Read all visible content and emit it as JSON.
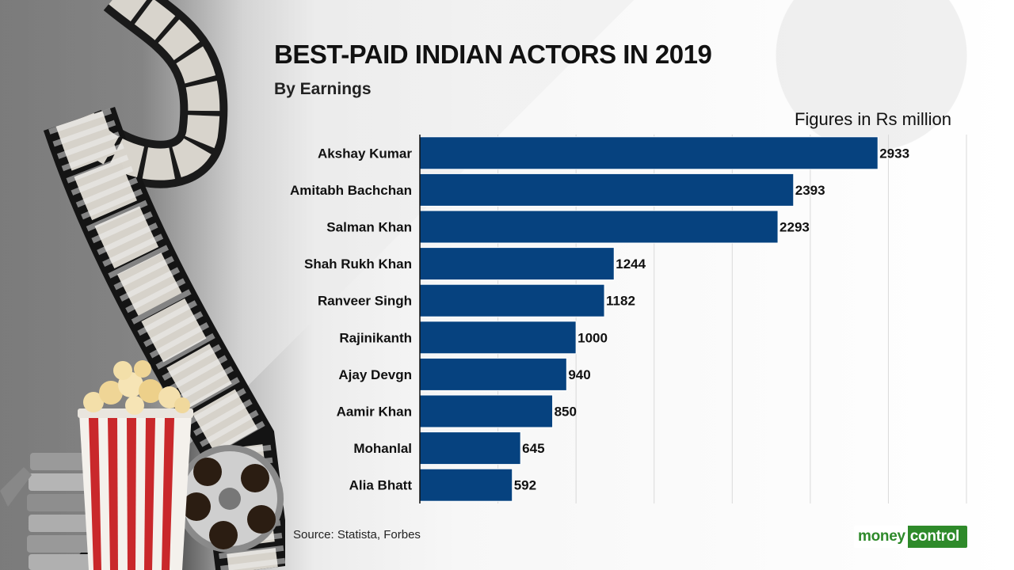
{
  "title": "BEST-PAID INDIAN ACTORS IN 2019",
  "subtitle": "By Earnings",
  "unit_note": "Figures in Rs million",
  "source": "Source: Statista, Forbes",
  "logo": {
    "part1": "money",
    "part2": "control"
  },
  "colors": {
    "bar": "#06427f",
    "logo_green": "#2e8a2a"
  },
  "icons": [
    "film-strip-icon",
    "popcorn-icon",
    "film-reel-icon"
  ],
  "chart_data": {
    "type": "bar",
    "orientation": "horizontal",
    "categories": [
      "Akshay Kumar",
      "Amitabh Bachchan",
      "Salman Khan",
      "Shah Rukh Khan",
      "Ranveer Singh",
      "Rajinikanth",
      "Ajay Devgn",
      "Aamir Khan",
      "Mohanlal",
      "Alia Bhatt"
    ],
    "values": [
      2933,
      2393,
      2293,
      1244,
      1182,
      1000,
      940,
      850,
      645,
      592
    ],
    "xlim": [
      0,
      3500
    ],
    "grid": true,
    "gridlines_at": [
      500,
      1000,
      1500,
      2000,
      2500,
      3000,
      3500
    ],
    "data_labels": true,
    "legend": "none"
  }
}
